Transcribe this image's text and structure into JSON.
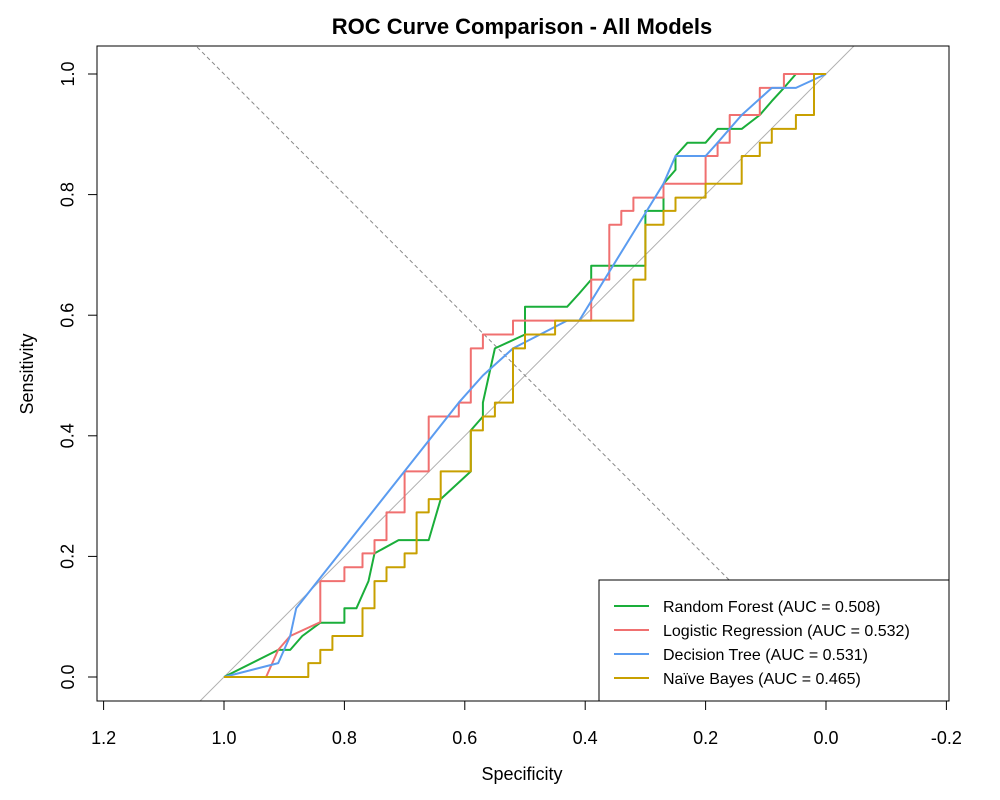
{
  "chart_data": {
    "type": "line",
    "title": "ROC Curve Comparison - All Models",
    "xlabel": "Specificity",
    "ylabel": "Sensitivity",
    "x_reversed": true,
    "xlim": [
      1.2,
      -0.2
    ],
    "ylim": [
      0.0,
      1.0
    ],
    "x_ticks": [
      "1.2",
      "1.0",
      "0.8",
      "0.6",
      "0.4",
      "0.2",
      "0.0",
      "-0.2"
    ],
    "y_ticks": [
      "0.0",
      "0.2",
      "0.4",
      "0.6",
      "0.8",
      "1.0"
    ],
    "legend_position": "bottom-right",
    "reference_lines": [
      {
        "name": "diagonal",
        "color": "#b0b0b0",
        "style": "solid",
        "from": [
          1.0,
          0.0
        ],
        "to": [
          0.0,
          1.0
        ]
      },
      {
        "name": "cross-diagonal",
        "color": "#888888",
        "style": "dashed",
        "from": [
          1.0,
          1.0
        ],
        "to": [
          0.0,
          0.0
        ]
      }
    ],
    "series": [
      {
        "name": "Random Forest (AUC = 0.508)",
        "color": "#1aae3a",
        "specificity": [
          1.0,
          0.91,
          0.89,
          0.87,
          0.84,
          0.8,
          0.8,
          0.78,
          0.76,
          0.75,
          0.71,
          0.66,
          0.64,
          0.59,
          0.59,
          0.57,
          0.57,
          0.55,
          0.5,
          0.5,
          0.43,
          0.41,
          0.39,
          0.39,
          0.3,
          0.3,
          0.27,
          0.27,
          0.25,
          0.25,
          0.23,
          0.2,
          0.18,
          0.14,
          0.11,
          0.09,
          0.07,
          0.05,
          0.0
        ],
        "sensitivity": [
          0.0,
          0.045,
          0.045,
          0.068,
          0.09,
          0.09,
          0.114,
          0.114,
          0.159,
          0.205,
          0.227,
          0.227,
          0.295,
          0.341,
          0.409,
          0.432,
          0.455,
          0.545,
          0.568,
          0.614,
          0.614,
          0.636,
          0.659,
          0.682,
          0.682,
          0.773,
          0.773,
          0.818,
          0.841,
          0.864,
          0.886,
          0.886,
          0.909,
          0.909,
          0.932,
          0.955,
          0.977,
          1.0,
          1.0
        ]
      },
      {
        "name": "Logistic Regression (AUC = 0.532)",
        "color": "#f07070",
        "specificity": [
          1.0,
          0.93,
          0.91,
          0.91,
          0.89,
          0.89,
          0.84,
          0.84,
          0.8,
          0.8,
          0.77,
          0.77,
          0.75,
          0.75,
          0.73,
          0.73,
          0.7,
          0.7,
          0.66,
          0.66,
          0.61,
          0.61,
          0.59,
          0.59,
          0.57,
          0.57,
          0.52,
          0.52,
          0.5,
          0.5,
          0.39,
          0.39,
          0.36,
          0.36,
          0.34,
          0.34,
          0.32,
          0.32,
          0.27,
          0.27,
          0.2,
          0.2,
          0.18,
          0.18,
          0.16,
          0.16,
          0.11,
          0.11,
          0.07,
          0.07,
          0.0
        ],
        "sensitivity": [
          0.0,
          0.0,
          0.045,
          0.045,
          0.068,
          0.068,
          0.091,
          0.159,
          0.159,
          0.182,
          0.182,
          0.205,
          0.205,
          0.227,
          0.227,
          0.273,
          0.273,
          0.341,
          0.341,
          0.432,
          0.432,
          0.455,
          0.455,
          0.545,
          0.545,
          0.568,
          0.568,
          0.591,
          0.591,
          0.591,
          0.591,
          0.659,
          0.659,
          0.75,
          0.75,
          0.773,
          0.773,
          0.795,
          0.795,
          0.818,
          0.818,
          0.864,
          0.864,
          0.886,
          0.886,
          0.932,
          0.932,
          0.977,
          0.977,
          1.0,
          1.0
        ]
      },
      {
        "name": "Decision Tree (AUC = 0.531)",
        "color": "#5b9cf0",
        "specificity": [
          1.0,
          0.91,
          0.89,
          0.88,
          0.61,
          0.57,
          0.52,
          0.43,
          0.41,
          0.27,
          0.25,
          0.23,
          0.2,
          0.18,
          0.14,
          0.09,
          0.05,
          0.0
        ],
        "sensitivity": [
          0.0,
          0.023,
          0.068,
          0.114,
          0.455,
          0.5,
          0.545,
          0.591,
          0.591,
          0.818,
          0.864,
          0.864,
          0.864,
          0.886,
          0.932,
          0.977,
          0.977,
          1.0
        ]
      },
      {
        "name": "Naïve Bayes (AUC = 0.465)",
        "color": "#c8a000",
        "specificity": [
          1.0,
          0.86,
          0.86,
          0.84,
          0.84,
          0.82,
          0.82,
          0.8,
          0.8,
          0.77,
          0.77,
          0.75,
          0.75,
          0.73,
          0.73,
          0.7,
          0.7,
          0.68,
          0.68,
          0.66,
          0.66,
          0.64,
          0.64,
          0.59,
          0.59,
          0.57,
          0.57,
          0.55,
          0.55,
          0.52,
          0.52,
          0.5,
          0.5,
          0.45,
          0.45,
          0.32,
          0.32,
          0.3,
          0.3,
          0.27,
          0.27,
          0.25,
          0.25,
          0.2,
          0.2,
          0.14,
          0.14,
          0.11,
          0.11,
          0.09,
          0.09,
          0.05,
          0.05,
          0.02,
          0.02,
          0.0
        ],
        "sensitivity": [
          0.0,
          0.0,
          0.023,
          0.023,
          0.045,
          0.045,
          0.068,
          0.068,
          0.068,
          0.068,
          0.114,
          0.114,
          0.159,
          0.159,
          0.182,
          0.182,
          0.205,
          0.205,
          0.273,
          0.273,
          0.295,
          0.295,
          0.341,
          0.341,
          0.409,
          0.409,
          0.432,
          0.432,
          0.455,
          0.455,
          0.545,
          0.545,
          0.568,
          0.568,
          0.591,
          0.591,
          0.659,
          0.659,
          0.75,
          0.75,
          0.773,
          0.773,
          0.795,
          0.795,
          0.818,
          0.818,
          0.864,
          0.864,
          0.886,
          0.886,
          0.909,
          0.909,
          0.932,
          0.932,
          1.0,
          1.0
        ]
      }
    ]
  }
}
